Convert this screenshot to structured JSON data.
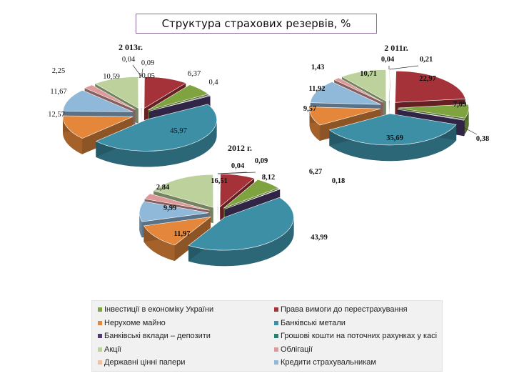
{
  "title": "Структура страхових резервів, %",
  "colors": [
    "#7fa33f",
    "#a43238",
    "#e4873b",
    "#3d8fa6",
    "#4e3b70",
    "#24826f",
    "#bcd19b",
    "#dc9a9a",
    "#f5c09c",
    "#8fb8d9"
  ],
  "legend_items": [
    "Інвестиції в економіку України",
    "Права вимоги до перестрахування",
    "Нерухоме майно",
    "Банківські метали",
    "Банківські вклади – депозити",
    "Грошові кошти на поточних рахунках у касі",
    "Акції",
    "Облігації",
    "Державні цінні папери",
    "Кредити страхувальникам"
  ],
  "chart_data": [
    {
      "type": "pie",
      "title": "2 013г.",
      "slices": [
        {
          "label": "0,09",
          "value": 0.09,
          "color": "#f5c09c"
        },
        {
          "label": "10,05",
          "value": 10.05,
          "color": "#a43238"
        },
        {
          "label": "6,37",
          "value": 6.37,
          "color": "#7fa33f"
        },
        {
          "label": "0,4",
          "value": 0.4,
          "color": "#4e3b70"
        },
        {
          "label": "45,97",
          "value": 45.97,
          "color": "#3d8fa6"
        },
        {
          "label": "12,57",
          "value": 12.57,
          "color": "#e4873b"
        },
        {
          "label": "11,67",
          "value": 11.67,
          "color": "#8fb8d9"
        },
        {
          "label": "2,25",
          "value": 2.25,
          "color": "#dc9a9a"
        },
        {
          "label": "10,59",
          "value": 10.59,
          "color": "#bcd19b"
        },
        {
          "label": "0,04",
          "value": 0.04,
          "color": "#24826f"
        }
      ]
    },
    {
      "type": "pie",
      "title": "2 011г.",
      "slices": [
        {
          "label": "0,21",
          "value": 0.21,
          "color": "#f5c09c"
        },
        {
          "label": "22,97",
          "value": 22.97,
          "color": "#a43238"
        },
        {
          "label": "7,09",
          "value": 7.09,
          "color": "#7fa33f"
        },
        {
          "label": "0,38",
          "value": 0.38,
          "color": "#4e3b70"
        },
        {
          "label": "35,69",
          "value": 35.69,
          "color": "#3d8fa6"
        },
        {
          "label": "9,57",
          "value": 9.57,
          "color": "#e4873b"
        },
        {
          "label": "11,92",
          "value": 11.92,
          "color": "#8fb8d9"
        },
        {
          "label": "1,43",
          "value": 1.43,
          "color": "#dc9a9a"
        },
        {
          "label": "10,71",
          "value": 10.71,
          "color": "#bcd19b"
        },
        {
          "label": "0,04",
          "value": 0.04,
          "color": "#24826f"
        }
      ]
    },
    {
      "type": "pie",
      "title": "2012 г.",
      "slices": [
        {
          "label": "0,09",
          "value": 0.09,
          "color": "#f5c09c"
        },
        {
          "label": "8,12",
          "value": 8.12,
          "color": "#a43238"
        },
        {
          "label": "6,27",
          "value": 6.27,
          "color": "#7fa33f"
        },
        {
          "label": "0,18",
          "value": 0.18,
          "color": "#4e3b70"
        },
        {
          "label": "43,99",
          "value": 43.99,
          "color": "#3d8fa6"
        },
        {
          "label": "11,97",
          "value": 11.97,
          "color": "#e4873b"
        },
        {
          "label": "9,99",
          "value": 9.99,
          "color": "#8fb8d9"
        },
        {
          "label": "2,84",
          "value": 2.84,
          "color": "#dc9a9a"
        },
        {
          "label": "16,51",
          "value": 16.51,
          "color": "#bcd19b"
        },
        {
          "label": "0,04",
          "value": 0.04,
          "color": "#24826f"
        }
      ]
    }
  ]
}
